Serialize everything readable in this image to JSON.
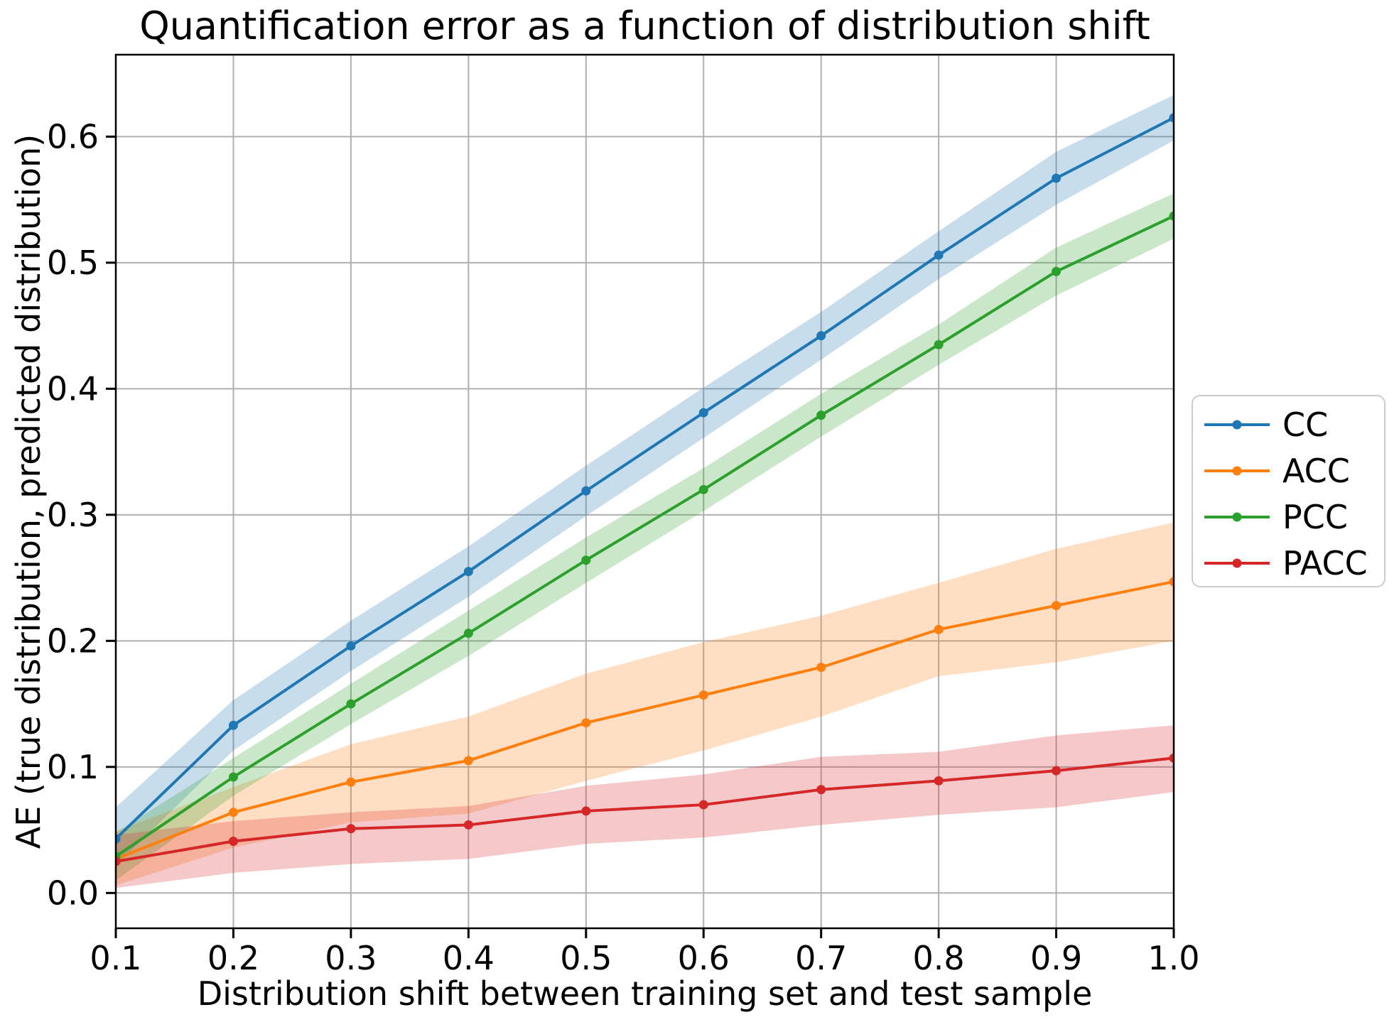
{
  "figure": {
    "title": "Quantification error as a function of distribution shift",
    "xlabel": "Distribution shift between training set and test sample",
    "ylabel": "AE (true distribution, predicted distribution)"
  },
  "axes": {
    "x_tick_labels": [
      "0.1",
      "0.2",
      "0.3",
      "0.4",
      "0.5",
      "0.6",
      "0.7",
      "0.8",
      "0.9",
      "1.0"
    ],
    "y_tick_labels": [
      "0.0",
      "0.1",
      "0.2",
      "0.3",
      "0.4",
      "0.5",
      "0.6"
    ],
    "grid_on": true,
    "grid_color": "#b0b0b0",
    "spine_color": "#000000",
    "tick_color": "#000000",
    "text_color": "#000000",
    "background_color": "#ffffff"
  },
  "legend": {
    "border_color": "#cccccc",
    "entries": [
      {
        "label": "CC",
        "color": "#1f77b4"
      },
      {
        "label": "ACC",
        "color": "#ff7f0e"
      },
      {
        "label": "PCC",
        "color": "#2ca02c"
      },
      {
        "label": "PACC",
        "color": "#d62728"
      }
    ]
  },
  "chart_data": {
    "type": "line",
    "title": "Quantification error as a function of distribution shift",
    "xlabel": "Distribution shift between training set and test sample",
    "ylabel": "AE (true distribution, predicted distribution)",
    "x": [
      0.1,
      0.2,
      0.3,
      0.4,
      0.5,
      0.6,
      0.7,
      0.8,
      0.9,
      1.0
    ],
    "xlim": [
      0.1,
      1.0
    ],
    "ylim": [
      -0.028,
      0.665
    ],
    "grid": true,
    "legend_position": "outside center right",
    "band_alpha": 0.25,
    "marker": "circle",
    "series": [
      {
        "name": "CC",
        "color": "#1f77b4",
        "values": [
          0.043,
          0.133,
          0.196,
          0.255,
          0.319,
          0.381,
          0.442,
          0.506,
          0.567,
          0.615
        ],
        "band_lower": [
          0.022,
          0.113,
          0.176,
          0.235,
          0.299,
          0.361,
          0.423,
          0.487,
          0.546,
          0.597
        ],
        "band_upper": [
          0.068,
          0.153,
          0.216,
          0.275,
          0.339,
          0.401,
          0.461,
          0.525,
          0.588,
          0.633
        ]
      },
      {
        "name": "ACC",
        "color": "#ff7f0e",
        "values": [
          0.027,
          0.064,
          0.088,
          0.105,
          0.135,
          0.157,
          0.179,
          0.209,
          0.228,
          0.247
        ],
        "band_lower": [
          0.006,
          0.036,
          0.056,
          0.063,
          0.089,
          0.113,
          0.14,
          0.172,
          0.183,
          0.2
        ],
        "band_upper": [
          0.049,
          0.084,
          0.118,
          0.14,
          0.174,
          0.199,
          0.22,
          0.246,
          0.273,
          0.294
        ]
      },
      {
        "name": "PCC",
        "color": "#2ca02c",
        "values": [
          0.029,
          0.092,
          0.15,
          0.206,
          0.264,
          0.32,
          0.379,
          0.435,
          0.493,
          0.537
        ],
        "band_lower": [
          0.01,
          0.077,
          0.134,
          0.188,
          0.246,
          0.303,
          0.362,
          0.419,
          0.474,
          0.519
        ],
        "band_upper": [
          0.048,
          0.107,
          0.166,
          0.224,
          0.282,
          0.337,
          0.396,
          0.451,
          0.512,
          0.555
        ]
      },
      {
        "name": "PACC",
        "color": "#d62728",
        "values": [
          0.025,
          0.041,
          0.051,
          0.054,
          0.065,
          0.07,
          0.082,
          0.089,
          0.097,
          0.107
        ],
        "band_lower": [
          0.004,
          0.016,
          0.023,
          0.027,
          0.039,
          0.044,
          0.054,
          0.062,
          0.068,
          0.08
        ],
        "band_upper": [
          0.046,
          0.057,
          0.064,
          0.069,
          0.085,
          0.094,
          0.108,
          0.112,
          0.125,
          0.133
        ]
      }
    ]
  }
}
